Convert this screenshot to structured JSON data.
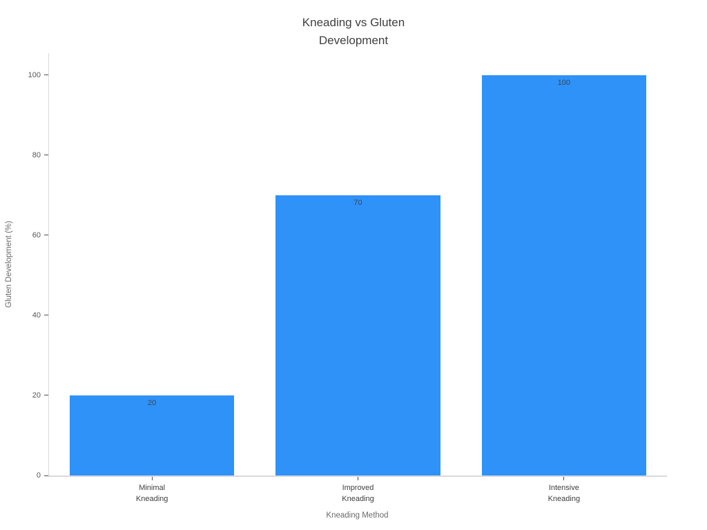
{
  "chart_data": {
    "type": "bar",
    "title": "Kneading vs Gluten\nDevelopment",
    "xlabel": "Kneading Method",
    "ylabel": "Gluten Development (%)",
    "categories": [
      "Minimal\nKneading",
      "Improved\nKneading",
      "Intensive\nKneading"
    ],
    "values": [
      20,
      70,
      100
    ],
    "bar_labels": [
      "20",
      "70",
      "100"
    ],
    "bar_label_position": "inside-top-center",
    "yticks": [
      0,
      20,
      40,
      60,
      80,
      100
    ],
    "ylim": [
      0,
      105.5
    ],
    "grid": "off",
    "legend": "none",
    "bar_width_fraction": 0.8,
    "colors": {
      "bar": "#2e92f8",
      "axis_line": "#d9d9d9",
      "tick_mark": "#4a4a4a",
      "tick_text": "#565656",
      "category_text": "#3e3e3e",
      "axis_title_text": "#6b6b6b",
      "title_text": "#3e3e3e",
      "bar_label_text": "#3d4654",
      "background": "#ffffff"
    }
  }
}
